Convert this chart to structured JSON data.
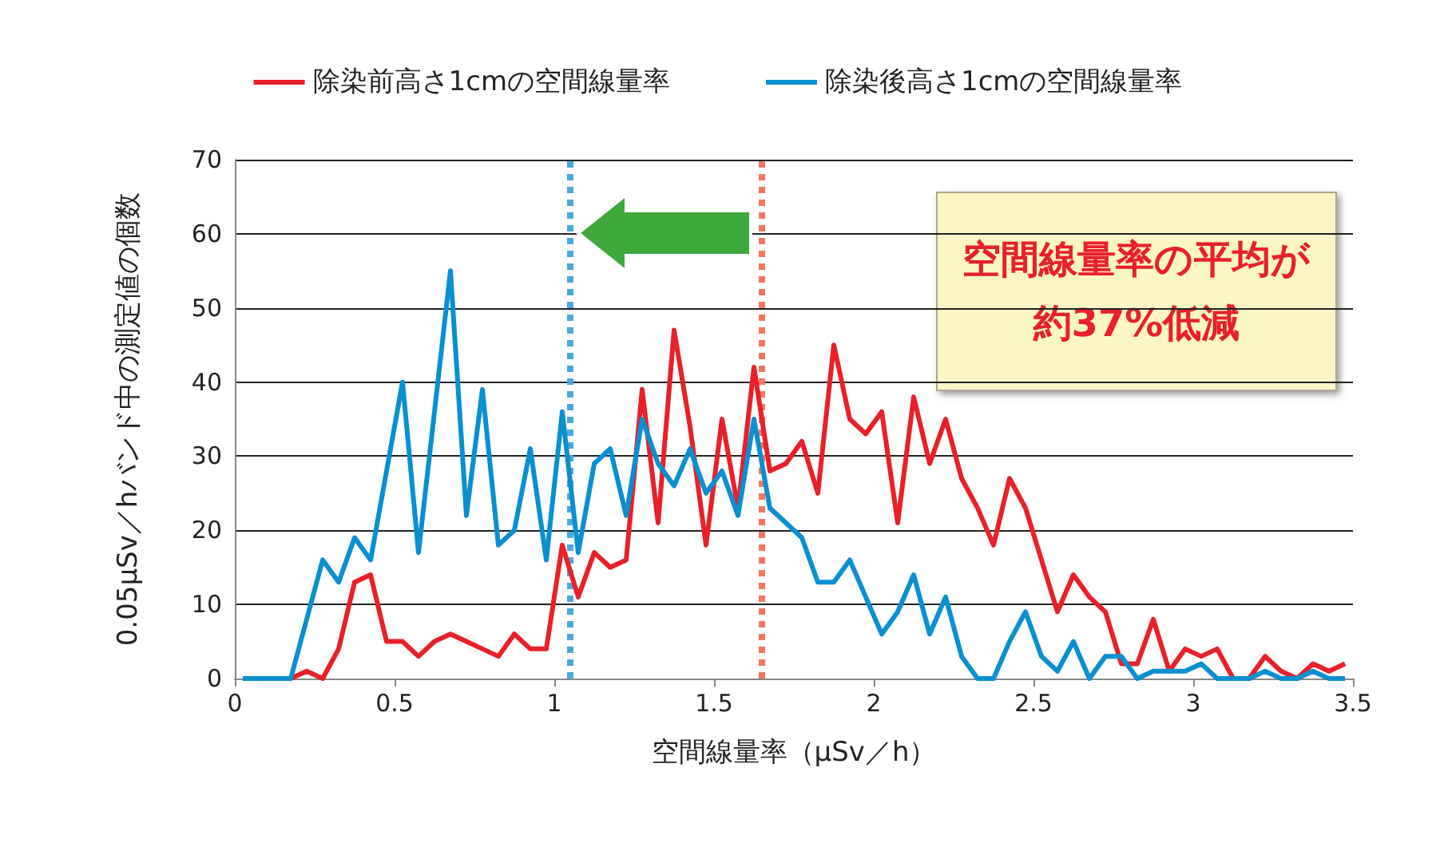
{
  "chart_data": {
    "type": "line",
    "xlabel": "空間線量率（μSv／h）",
    "ylabel": "0.05μSv／hバンド中の測定値の個数",
    "x": [
      0.025,
      0.075,
      0.125,
      0.175,
      0.225,
      0.275,
      0.325,
      0.375,
      0.425,
      0.475,
      0.525,
      0.575,
      0.625,
      0.675,
      0.725,
      0.775,
      0.825,
      0.875,
      0.925,
      0.975,
      1.025,
      1.075,
      1.125,
      1.175,
      1.225,
      1.275,
      1.325,
      1.375,
      1.425,
      1.475,
      1.525,
      1.575,
      1.625,
      1.675,
      1.725,
      1.775,
      1.825,
      1.875,
      1.925,
      1.975,
      2.025,
      2.075,
      2.125,
      2.175,
      2.225,
      2.275,
      2.325,
      2.375,
      2.425,
      2.475,
      2.525,
      2.575,
      2.625,
      2.675,
      2.725,
      2.775,
      2.825,
      2.875,
      2.925,
      2.975,
      3.025,
      3.075,
      3.125,
      3.175,
      3.225,
      3.275,
      3.325,
      3.375,
      3.425,
      3.475
    ],
    "series": [
      {
        "name": "除染前高さ1cmの空間線量率",
        "color": "#e8202a",
        "values": [
          null,
          null,
          null,
          0,
          1,
          0,
          4,
          13,
          14,
          5,
          5,
          3,
          5,
          6,
          5,
          4,
          3,
          6,
          4,
          4,
          18,
          11,
          17,
          15,
          16,
          39,
          21,
          47,
          34,
          18,
          35,
          23,
          42,
          28,
          29,
          32,
          25,
          45,
          35,
          33,
          36,
          21,
          38,
          29,
          35,
          27,
          23,
          18,
          27,
          23,
          16,
          9,
          14,
          11,
          9,
          2,
          2,
          8,
          1,
          4,
          3,
          4,
          0,
          0,
          3,
          1,
          0,
          2,
          1,
          2
        ]
      },
      {
        "name": "除染後高さ1cmの空間線量率",
        "color": "#0a8fd0",
        "values": [
          0,
          0,
          0,
          0,
          8,
          16,
          13,
          19,
          16,
          28,
          40,
          17,
          36,
          55,
          22,
          39,
          18,
          20,
          31,
          16,
          36,
          17,
          29,
          31,
          22,
          35,
          29,
          26,
          31,
          25,
          28,
          22,
          35,
          23,
          21,
          19,
          13,
          13,
          16,
          11,
          6,
          9,
          14,
          6,
          11,
          3,
          0,
          0,
          5,
          9,
          3,
          1,
          5,
          0,
          3,
          3,
          0,
          1,
          1,
          1,
          2,
          0,
          0,
          0,
          1,
          0,
          0,
          1,
          0,
          0
        ]
      }
    ],
    "xlim": [
      0,
      3.5
    ],
    "xticks": [
      0,
      0.5,
      1,
      1.5,
      2,
      2.5,
      3,
      3.5
    ],
    "ylim": [
      0,
      70
    ],
    "yticks": [
      0,
      10,
      20,
      30,
      40,
      50,
      60,
      70
    ],
    "ref_lines": [
      {
        "axis": "x",
        "value": 1.05,
        "color": "#4aa8e0",
        "line_style": "dotted"
      },
      {
        "axis": "x",
        "value": 1.65,
        "color": "#f07860",
        "line_style": "dotted"
      }
    ],
    "annotations": [
      "空間線量率の平均が",
      "約37%低減"
    ],
    "grid": "y",
    "legend": "top",
    "marker": "none",
    "line_style": "solid"
  }
}
